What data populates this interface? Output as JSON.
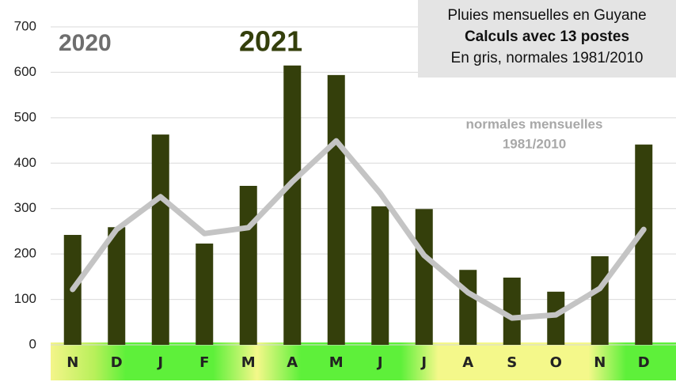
{
  "chart_data": {
    "type": "bar",
    "title_lines": [
      "Pluies mensuelles en Guyane",
      "Calculs avec 13 postes",
      "En gris, normales 1981/2010"
    ],
    "annotations": [
      "2020",
      "2021",
      "normales mensuelles",
      "1981/2010"
    ],
    "categories": [
      "N",
      "D",
      "J",
      "F",
      "M",
      "A",
      "M",
      "J",
      "J",
      "A",
      "S",
      "O",
      "N",
      "D"
    ],
    "series": [
      {
        "type": "bar",
        "color": "#343f0b",
        "values": [
          242,
          259,
          463,
          223,
          350,
          615,
          594,
          305,
          299,
          165,
          148,
          117,
          195,
          441
        ]
      },
      {
        "type": "line",
        "color": "#c4c4c4",
        "values": [
          122,
          254,
          326,
          245,
          258,
          359,
          449,
          334,
          197,
          115,
          59,
          66,
          124,
          254
        ]
      }
    ],
    "ylim": [
      0,
      700
    ],
    "yticks": [
      0,
      100,
      200,
      300,
      400,
      500,
      600,
      700
    ],
    "grid": true
  }
}
